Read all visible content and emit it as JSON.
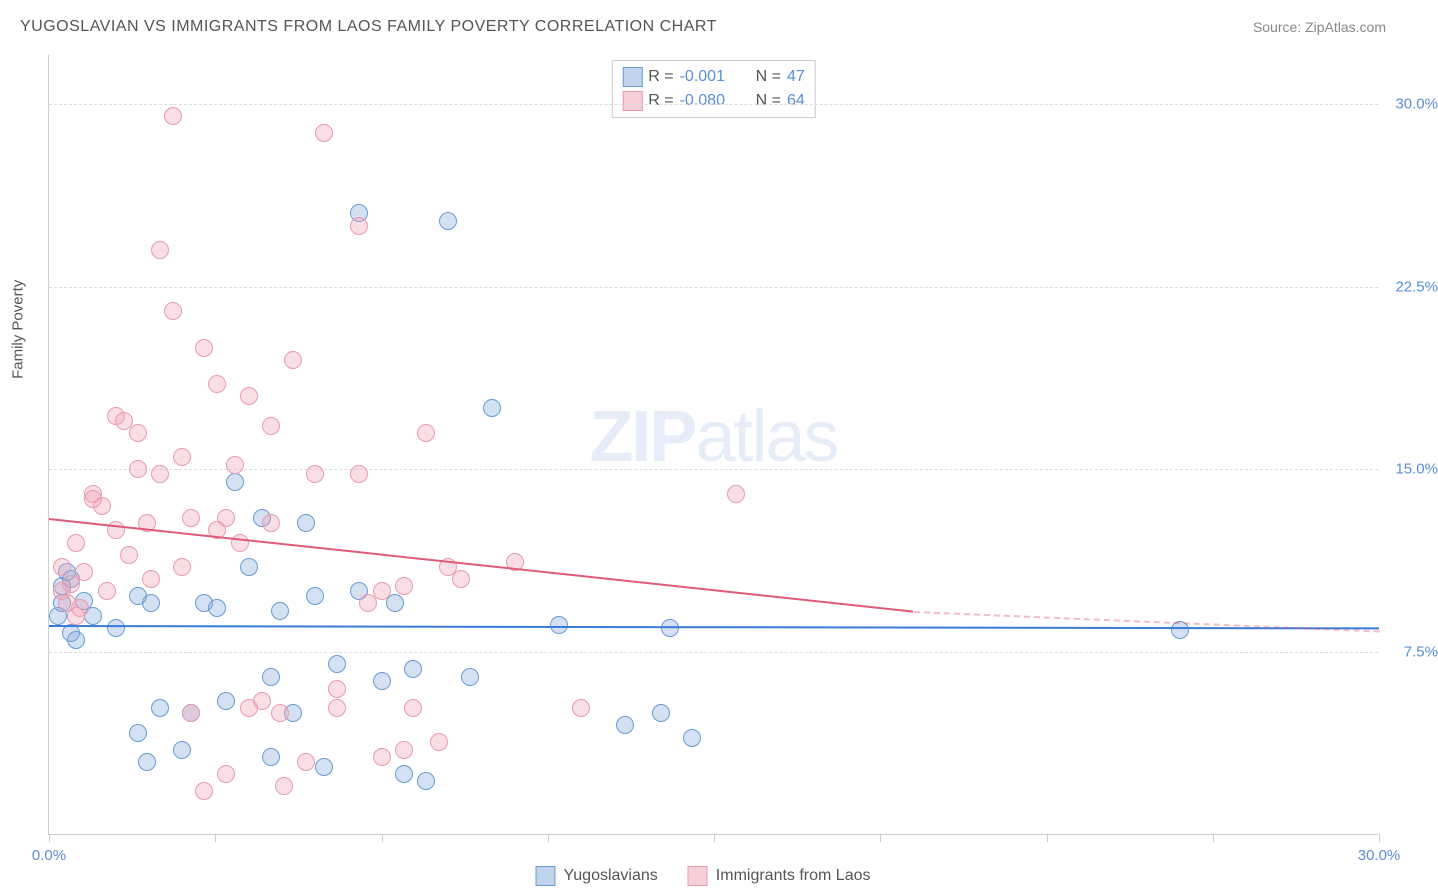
{
  "header": {
    "title": "YUGOSLAVIAN VS IMMIGRANTS FROM LAOS FAMILY POVERTY CORRELATION CHART",
    "source": "Source: ZipAtlas.com"
  },
  "ylabel": "Family Poverty",
  "watermark": {
    "bold": "ZIP",
    "light": "atlas"
  },
  "chart": {
    "type": "scatter",
    "xlim": [
      0,
      30
    ],
    "ylim": [
      0,
      32
    ],
    "xtick_positions": [
      0,
      3.75,
      7.5,
      11.25,
      15,
      18.75,
      22.5,
      26.25,
      30
    ],
    "xtick_labels": {
      "0": "0.0%",
      "30": "30.0%"
    },
    "yticks": [
      7.5,
      15.0,
      22.5,
      30.0
    ],
    "ytick_labels": [
      "7.5%",
      "15.0%",
      "22.5%",
      "30.0%"
    ],
    "grid_color": "#dddddd",
    "axis_color": "#cccccc",
    "background_color": "#ffffff",
    "point_radius": 9,
    "series": [
      {
        "name": "Yugoslavians",
        "fill": "rgba(130,170,220,0.35)",
        "stroke": "#6b9bd1",
        "trend_color": "#3a7bd5",
        "trend": {
          "x1": 0,
          "y1": 8.6,
          "x2": 30,
          "y2": 8.5
        },
        "R": "-0.001",
        "N": "47",
        "points": [
          [
            0.2,
            9.0
          ],
          [
            0.3,
            10.2
          ],
          [
            0.3,
            9.5
          ],
          [
            0.5,
            8.3
          ],
          [
            0.5,
            10.5
          ],
          [
            0.6,
            8.0
          ],
          [
            0.8,
            9.6
          ],
          [
            1.5,
            8.5
          ],
          [
            2.0,
            4.2
          ],
          [
            2.0,
            9.8
          ],
          [
            2.2,
            3.0
          ],
          [
            2.3,
            9.5
          ],
          [
            2.5,
            5.2
          ],
          [
            3.0,
            3.5
          ],
          [
            3.2,
            5.0
          ],
          [
            3.5,
            9.5
          ],
          [
            3.8,
            9.3
          ],
          [
            4.0,
            5.5
          ],
          [
            4.2,
            14.5
          ],
          [
            4.5,
            11.0
          ],
          [
            4.8,
            13.0
          ],
          [
            5.0,
            6.5
          ],
          [
            5.0,
            3.2
          ],
          [
            5.2,
            9.2
          ],
          [
            5.5,
            5.0
          ],
          [
            5.8,
            12.8
          ],
          [
            6.0,
            9.8
          ],
          [
            6.2,
            2.8
          ],
          [
            6.5,
            7.0
          ],
          [
            7.0,
            25.5
          ],
          [
            7.0,
            10.0
          ],
          [
            7.5,
            6.3
          ],
          [
            7.8,
            9.5
          ],
          [
            8.0,
            2.5
          ],
          [
            8.2,
            6.8
          ],
          [
            8.5,
            2.2
          ],
          [
            9.0,
            25.2
          ],
          [
            9.5,
            6.5
          ],
          [
            10.0,
            17.5
          ],
          [
            11.5,
            8.6
          ],
          [
            13.0,
            4.5
          ],
          [
            13.8,
            5.0
          ],
          [
            14.0,
            8.5
          ],
          [
            14.5,
            4.0
          ],
          [
            25.5,
            8.4
          ],
          [
            0.4,
            10.8
          ],
          [
            1.0,
            9.0
          ]
        ]
      },
      {
        "name": "Immigrants from Laos",
        "fill": "rgba(240,160,180,0.35)",
        "stroke": "#e89bb0",
        "trend_color": "#e05a7a",
        "trend": {
          "x1": 0,
          "y1": 13.0,
          "x2": 19.5,
          "y2": 9.2
        },
        "trend_dash": {
          "x1": 19.5,
          "y1": 9.2,
          "x2": 30,
          "y2": 8.4
        },
        "R": "-0.080",
        "N": "64",
        "points": [
          [
            0.3,
            10.0
          ],
          [
            0.3,
            11.0
          ],
          [
            0.4,
            9.5
          ],
          [
            0.5,
            10.3
          ],
          [
            0.6,
            12.0
          ],
          [
            0.7,
            9.3
          ],
          [
            0.8,
            10.8
          ],
          [
            1.0,
            14.0
          ],
          [
            1.2,
            13.5
          ],
          [
            1.3,
            10.0
          ],
          [
            1.5,
            17.2
          ],
          [
            1.5,
            12.5
          ],
          [
            1.8,
            11.5
          ],
          [
            2.0,
            15.0
          ],
          [
            2.0,
            16.5
          ],
          [
            2.2,
            12.8
          ],
          [
            2.3,
            10.5
          ],
          [
            2.5,
            24.0
          ],
          [
            2.5,
            14.8
          ],
          [
            2.8,
            29.5
          ],
          [
            2.8,
            21.5
          ],
          [
            3.0,
            15.5
          ],
          [
            3.0,
            11.0
          ],
          [
            3.2,
            5.0
          ],
          [
            3.2,
            13.0
          ],
          [
            3.5,
            1.8
          ],
          [
            3.5,
            20.0
          ],
          [
            3.8,
            18.5
          ],
          [
            3.8,
            12.5
          ],
          [
            4.0,
            2.5
          ],
          [
            4.2,
            15.2
          ],
          [
            4.3,
            12.0
          ],
          [
            4.5,
            18.0
          ],
          [
            4.5,
            5.2
          ],
          [
            4.8,
            5.5
          ],
          [
            5.0,
            16.8
          ],
          [
            5.0,
            12.8
          ],
          [
            5.2,
            5.0
          ],
          [
            5.5,
            19.5
          ],
          [
            5.8,
            3.0
          ],
          [
            6.0,
            14.8
          ],
          [
            6.2,
            28.8
          ],
          [
            6.5,
            6.0
          ],
          [
            6.5,
            5.2
          ],
          [
            7.0,
            25.0
          ],
          [
            7.0,
            14.8
          ],
          [
            7.2,
            9.5
          ],
          [
            7.5,
            3.2
          ],
          [
            7.5,
            10.0
          ],
          [
            8.0,
            3.5
          ],
          [
            8.0,
            10.2
          ],
          [
            8.2,
            5.2
          ],
          [
            8.5,
            16.5
          ],
          [
            8.8,
            3.8
          ],
          [
            9.0,
            11.0
          ],
          [
            9.3,
            10.5
          ],
          [
            10.5,
            11.2
          ],
          [
            12.0,
            5.2
          ],
          [
            15.5,
            14.0
          ],
          [
            0.6,
            9.0
          ],
          [
            1.0,
            13.8
          ],
          [
            1.7,
            17.0
          ],
          [
            4.0,
            13.0
          ],
          [
            5.3,
            2.0
          ]
        ]
      }
    ]
  },
  "legend_top": {
    "rows": [
      {
        "swatch_fill": "rgba(130,170,220,0.5)",
        "swatch_stroke": "#6b9bd1",
        "r_label": "R =",
        "r_val": "-0.001",
        "n_label": "N =",
        "n_val": "47"
      },
      {
        "swatch_fill": "rgba(240,160,180,0.5)",
        "swatch_stroke": "#e89bb0",
        "r_label": "R =",
        "r_val": "-0.080",
        "n_label": "N =",
        "n_val": "64"
      }
    ]
  },
  "legend_bottom": [
    {
      "swatch_fill": "rgba(130,170,220,0.5)",
      "swatch_stroke": "#6b9bd1",
      "label": "Yugoslavians"
    },
    {
      "swatch_fill": "rgba(240,160,180,0.5)",
      "swatch_stroke": "#e89bb0",
      "label": "Immigrants from Laos"
    }
  ]
}
